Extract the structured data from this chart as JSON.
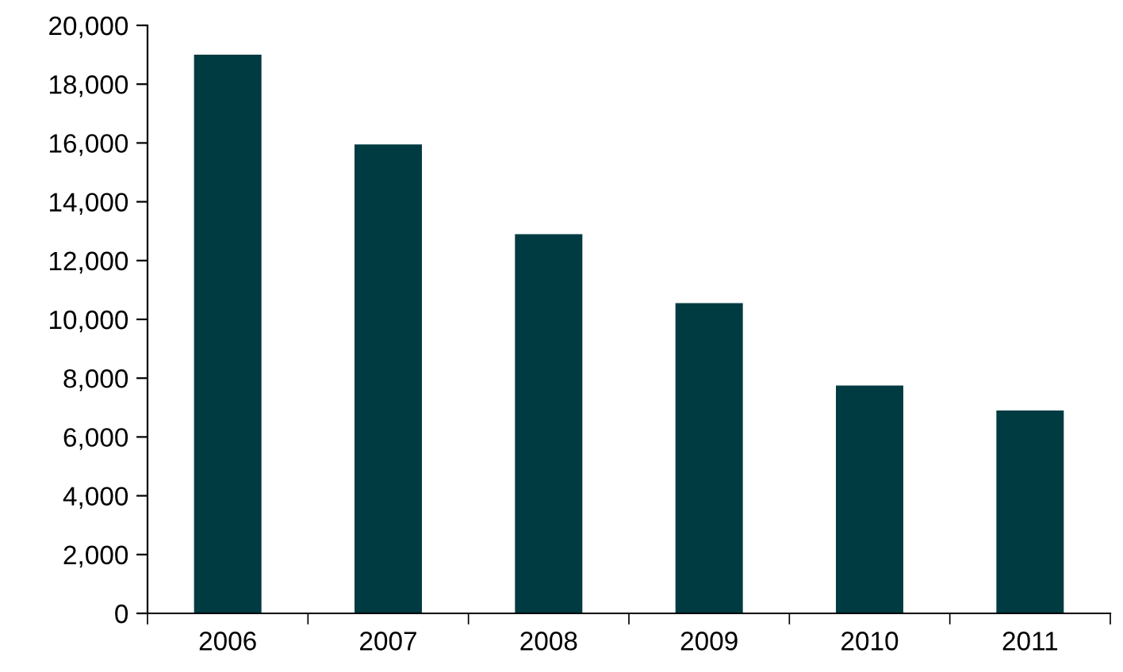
{
  "chart_data": {
    "type": "bar",
    "categories": [
      "2006",
      "2007",
      "2008",
      "2009",
      "2010",
      "2011"
    ],
    "series": [
      {
        "color": "#003b42",
        "values": [
          19000,
          15950,
          12900,
          10550,
          7750,
          6900
        ]
      }
    ],
    "ylim": [
      0,
      20000
    ],
    "yticks": [
      {
        "value": 0,
        "label": "0"
      },
      {
        "value": 2000,
        "label": "2,000"
      },
      {
        "value": 4000,
        "label": "4,000"
      },
      {
        "value": 6000,
        "label": "6,000"
      },
      {
        "value": 8000,
        "label": "8,000"
      },
      {
        "value": 10000,
        "label": "10,000"
      },
      {
        "value": 12000,
        "label": "12,000"
      },
      {
        "value": 14000,
        "label": "14,000"
      },
      {
        "value": 16000,
        "label": "16,000"
      },
      {
        "value": 18000,
        "label": "18,000"
      },
      {
        "value": 20000,
        "label": "20,000"
      }
    ],
    "grid": false
  }
}
